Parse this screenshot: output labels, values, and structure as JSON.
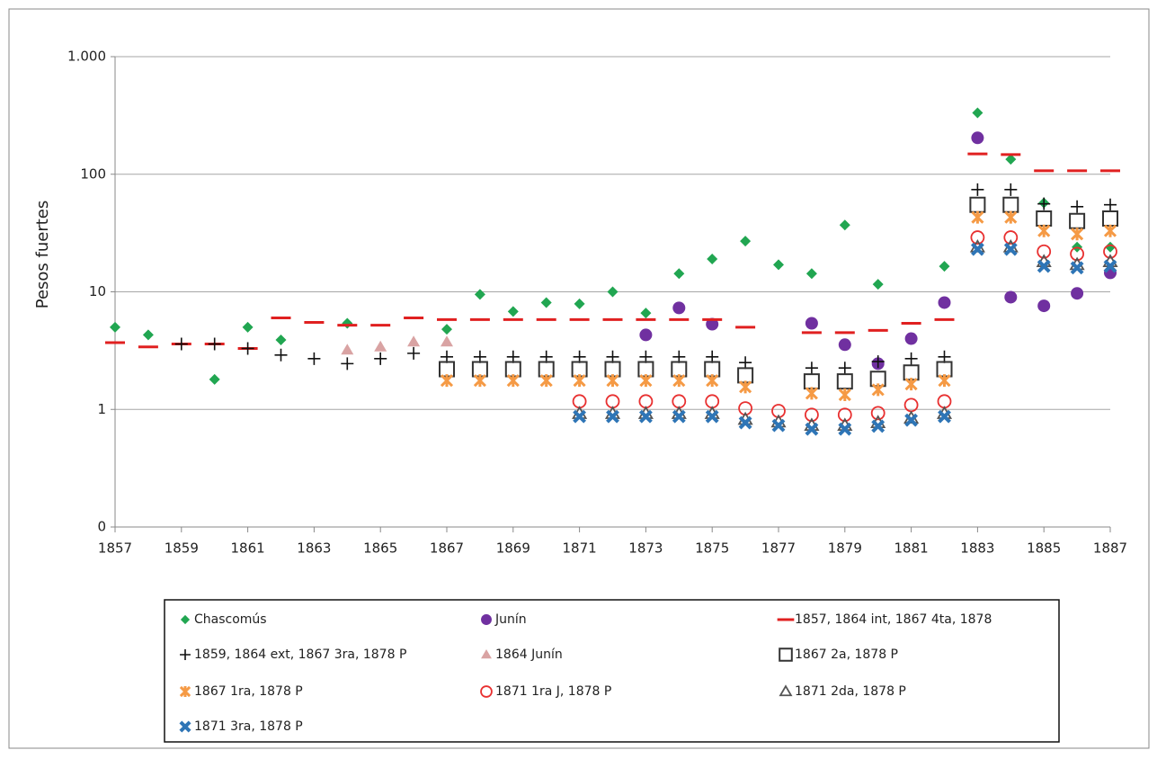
{
  "chart_data": {
    "type": "scatter",
    "y_label": "Pesos fuertes",
    "log_y": true,
    "grid": true,
    "xlim": [
      1857,
      1887
    ],
    "xticks": [
      1857,
      1859,
      1861,
      1863,
      1865,
      1867,
      1869,
      1871,
      1873,
      1875,
      1877,
      1879,
      1881,
      1883,
      1885,
      1887
    ],
    "ylim": [
      0.1,
      1000
    ],
    "yticks": [
      {
        "value": 0.1,
        "label": "0"
      },
      1,
      10,
      100,
      {
        "value": 1000,
        "label": "1.000"
      }
    ],
    "legend": "bottom",
    "series": [
      {
        "name": "Chascomús",
        "color": "#21a651",
        "marker": "diamond",
        "x": [
          1857,
          1858,
          1860,
          1861,
          1862,
          1864,
          1867,
          1868,
          1869,
          1870,
          1871,
          1872,
          1873,
          1874,
          1875,
          1876,
          1877,
          1878,
          1879,
          1880,
          1882,
          1883,
          1884,
          1885,
          1886,
          1887
        ],
        "values": [
          5.0,
          4.3,
          1.8,
          5.0,
          3.9,
          5.4,
          4.8,
          9.5,
          6.8,
          8.1,
          7.9,
          10,
          6.6,
          14.3,
          19,
          27,
          17,
          14.3,
          37,
          11.6,
          16.5,
          333,
          134,
          57,
          24,
          24
        ]
      },
      {
        "name": "Junín",
        "color": "#7030a0",
        "marker": "circle",
        "x": [
          1873,
          1874,
          1875,
          1878,
          1879,
          1880,
          1881,
          1882,
          1883,
          1884,
          1885,
          1886,
          1887
        ],
        "values": [
          4.3,
          7.3,
          5.3,
          5.4,
          3.55,
          2.45,
          4.0,
          8.1,
          204,
          9.0,
          7.6,
          9.7,
          14.5
        ]
      },
      {
        "name": "1857, 1864 int, 1867 4ta, 1878",
        "color": "#e02020",
        "marker": "dash",
        "x": [
          1857,
          1858,
          1859,
          1860,
          1861,
          1862,
          1863,
          1864,
          1865,
          1866,
          1867,
          1868,
          1869,
          1870,
          1871,
          1872,
          1873,
          1874,
          1875,
          1876,
          1878,
          1879,
          1880,
          1881,
          1882,
          1883,
          1884,
          1885,
          1886,
          1887
        ],
        "values": [
          3.7,
          3.4,
          3.6,
          3.6,
          3.3,
          6.0,
          5.5,
          5.2,
          5.2,
          6.0,
          5.8,
          5.8,
          5.8,
          5.8,
          5.8,
          5.8,
          5.8,
          5.8,
          5.8,
          5.0,
          4.5,
          4.5,
          4.7,
          5.4,
          5.8,
          149,
          147,
          107,
          107,
          107
        ]
      },
      {
        "name": "1859, 1864 ext, 1867 3ra, 1878 P",
        "color": "#111111",
        "marker": "plus",
        "x": [
          1859,
          1860,
          1861,
          1862,
          1863,
          1864,
          1865,
          1866,
          1867,
          1868,
          1869,
          1870,
          1871,
          1872,
          1873,
          1874,
          1875,
          1876,
          1878,
          1879,
          1880,
          1881,
          1882,
          1883,
          1884,
          1885,
          1886,
          1887
        ],
        "values": [
          3.6,
          3.6,
          3.3,
          2.9,
          2.7,
          2.45,
          2.7,
          3.0,
          2.8,
          2.8,
          2.8,
          2.8,
          2.8,
          2.8,
          2.8,
          2.8,
          2.8,
          2.5,
          2.25,
          2.25,
          2.55,
          2.7,
          2.8,
          74,
          74,
          56,
          53,
          55
        ]
      },
      {
        "name": "1864 Junín",
        "color": "#d9a3a3",
        "marker": "triangle",
        "x": [
          1864,
          1865,
          1866,
          1867
        ],
        "values": [
          3.2,
          3.4,
          3.75,
          3.75
        ]
      },
      {
        "name": "1867 2a, 1878 P",
        "color": "#333333",
        "marker": "square-open",
        "x": [
          1867,
          1868,
          1869,
          1870,
          1871,
          1872,
          1873,
          1874,
          1875,
          1876,
          1878,
          1879,
          1880,
          1881,
          1882,
          1883,
          1884,
          1885,
          1886,
          1887
        ],
        "values": [
          2.2,
          2.2,
          2.2,
          2.2,
          2.2,
          2.2,
          2.2,
          2.2,
          2.2,
          1.95,
          1.73,
          1.73,
          1.82,
          2.06,
          2.2,
          55,
          55,
          42,
          40,
          42
        ]
      },
      {
        "name": "1867 1ra, 1878 P",
        "color": "#f59a45",
        "marker": "asterisk",
        "x": [
          1867,
          1868,
          1869,
          1870,
          1871,
          1872,
          1873,
          1874,
          1875,
          1876,
          1878,
          1879,
          1880,
          1881,
          1882,
          1883,
          1884,
          1885,
          1886,
          1887
        ],
        "values": [
          1.76,
          1.76,
          1.76,
          1.76,
          1.76,
          1.76,
          1.76,
          1.76,
          1.76,
          1.55,
          1.37,
          1.33,
          1.47,
          1.64,
          1.76,
          43,
          43,
          33,
          31,
          33
        ]
      },
      {
        "name": "1871 1ra J, 1878 P",
        "color": "#e83030",
        "marker": "circle-open",
        "x": [
          1871,
          1872,
          1873,
          1874,
          1875,
          1876,
          1877,
          1878,
          1879,
          1880,
          1881,
          1882,
          1883,
          1884,
          1885,
          1886,
          1887
        ],
        "values": [
          1.17,
          1.17,
          1.17,
          1.17,
          1.17,
          1.02,
          0.97,
          0.9,
          0.9,
          0.93,
          1.09,
          1.17,
          29,
          29,
          22,
          21,
          22
        ]
      },
      {
        "name": "1871 2da, 1878 P",
        "color": "#555555",
        "marker": "triangle-open",
        "x": [
          1871,
          1872,
          1873,
          1874,
          1875,
          1876,
          1877,
          1878,
          1879,
          1880,
          1881,
          1882,
          1883,
          1884,
          1885,
          1886,
          1887
        ],
        "values": [
          0.92,
          0.92,
          0.92,
          0.92,
          0.92,
          0.82,
          0.78,
          0.73,
          0.73,
          0.77,
          0.84,
          0.92,
          24,
          24,
          18,
          17,
          18
        ]
      },
      {
        "name": "1871 3ra, 1878 P",
        "color": "#2e75b6",
        "marker": "x",
        "x": [
          1871,
          1872,
          1873,
          1874,
          1875,
          1876,
          1877,
          1878,
          1879,
          1880,
          1881,
          1882,
          1883,
          1884,
          1885,
          1886,
          1887
        ],
        "values": [
          0.87,
          0.87,
          0.87,
          0.87,
          0.87,
          0.77,
          0.73,
          0.68,
          0.68,
          0.72,
          0.81,
          0.87,
          23,
          23,
          16.5,
          16,
          16.5
        ]
      }
    ]
  }
}
